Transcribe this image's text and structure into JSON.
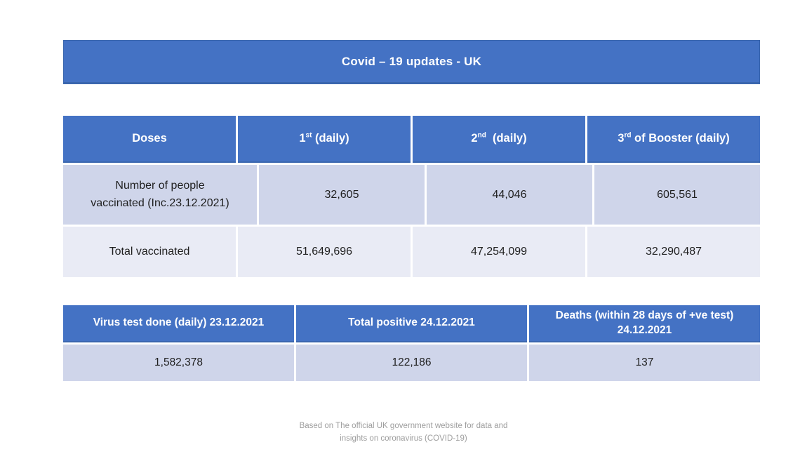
{
  "banner": {
    "title": "Covid – 19 updates - UK"
  },
  "colors": {
    "accent_blue": "#4472C4",
    "accent_blue_dark": "#3A66AE",
    "row_band_dark": "#CFD5EA",
    "row_band_light": "#E9EBF5",
    "footer_gray": "#9E9E9E"
  },
  "vaccination_table": {
    "headers": [
      {
        "prefix": "Doses",
        "sup": "",
        "suffix": ""
      },
      {
        "prefix": "1",
        "sup": "st",
        "suffix": " (daily)"
      },
      {
        "prefix": "2",
        "sup": "nd",
        "suffix": "  (daily)"
      },
      {
        "prefix": "3",
        "sup": "rd",
        "suffix": " of Booster (daily)"
      }
    ],
    "rows": [
      {
        "label": "Number of people vaccinated (Inc.23.12.2021)",
        "values": [
          "32,605",
          "44,046",
          "605,561"
        ]
      },
      {
        "label": "Total vaccinated",
        "values": [
          "51,649,696",
          "47,254,099",
          "32,290,487"
        ]
      }
    ]
  },
  "stats_table": {
    "headers": [
      "Virus test done (daily) 23.12.2021",
      "Total positive 24.12.2021",
      "Deaths (within 28 days of +ve test) 24.12.2021"
    ],
    "values": [
      "1,582,378",
      "122,186",
      "137"
    ]
  },
  "footer": {
    "note": "Based on The official UK government website for data and\ninsights on coronavirus (COVID-19)"
  },
  "chart_data": {
    "type": "table",
    "title": "Covid – 19 updates - UK",
    "tables": [
      {
        "columns": [
          "Doses",
          "1st (daily)",
          "2nd (daily)",
          "3rd of Booster (daily)"
        ],
        "rows": [
          [
            "Number of people vaccinated (Inc.23.12.2021)",
            32605,
            44046,
            605561
          ],
          [
            "Total vaccinated",
            51649696,
            47254099,
            32290487
          ]
        ]
      },
      {
        "columns": [
          "Virus test done (daily) 23.12.2021",
          "Total positive 24.12.2021",
          "Deaths (within 28 days of +ve test) 24.12.2021"
        ],
        "rows": [
          [
            1582378,
            122186,
            137
          ]
        ]
      }
    ]
  }
}
